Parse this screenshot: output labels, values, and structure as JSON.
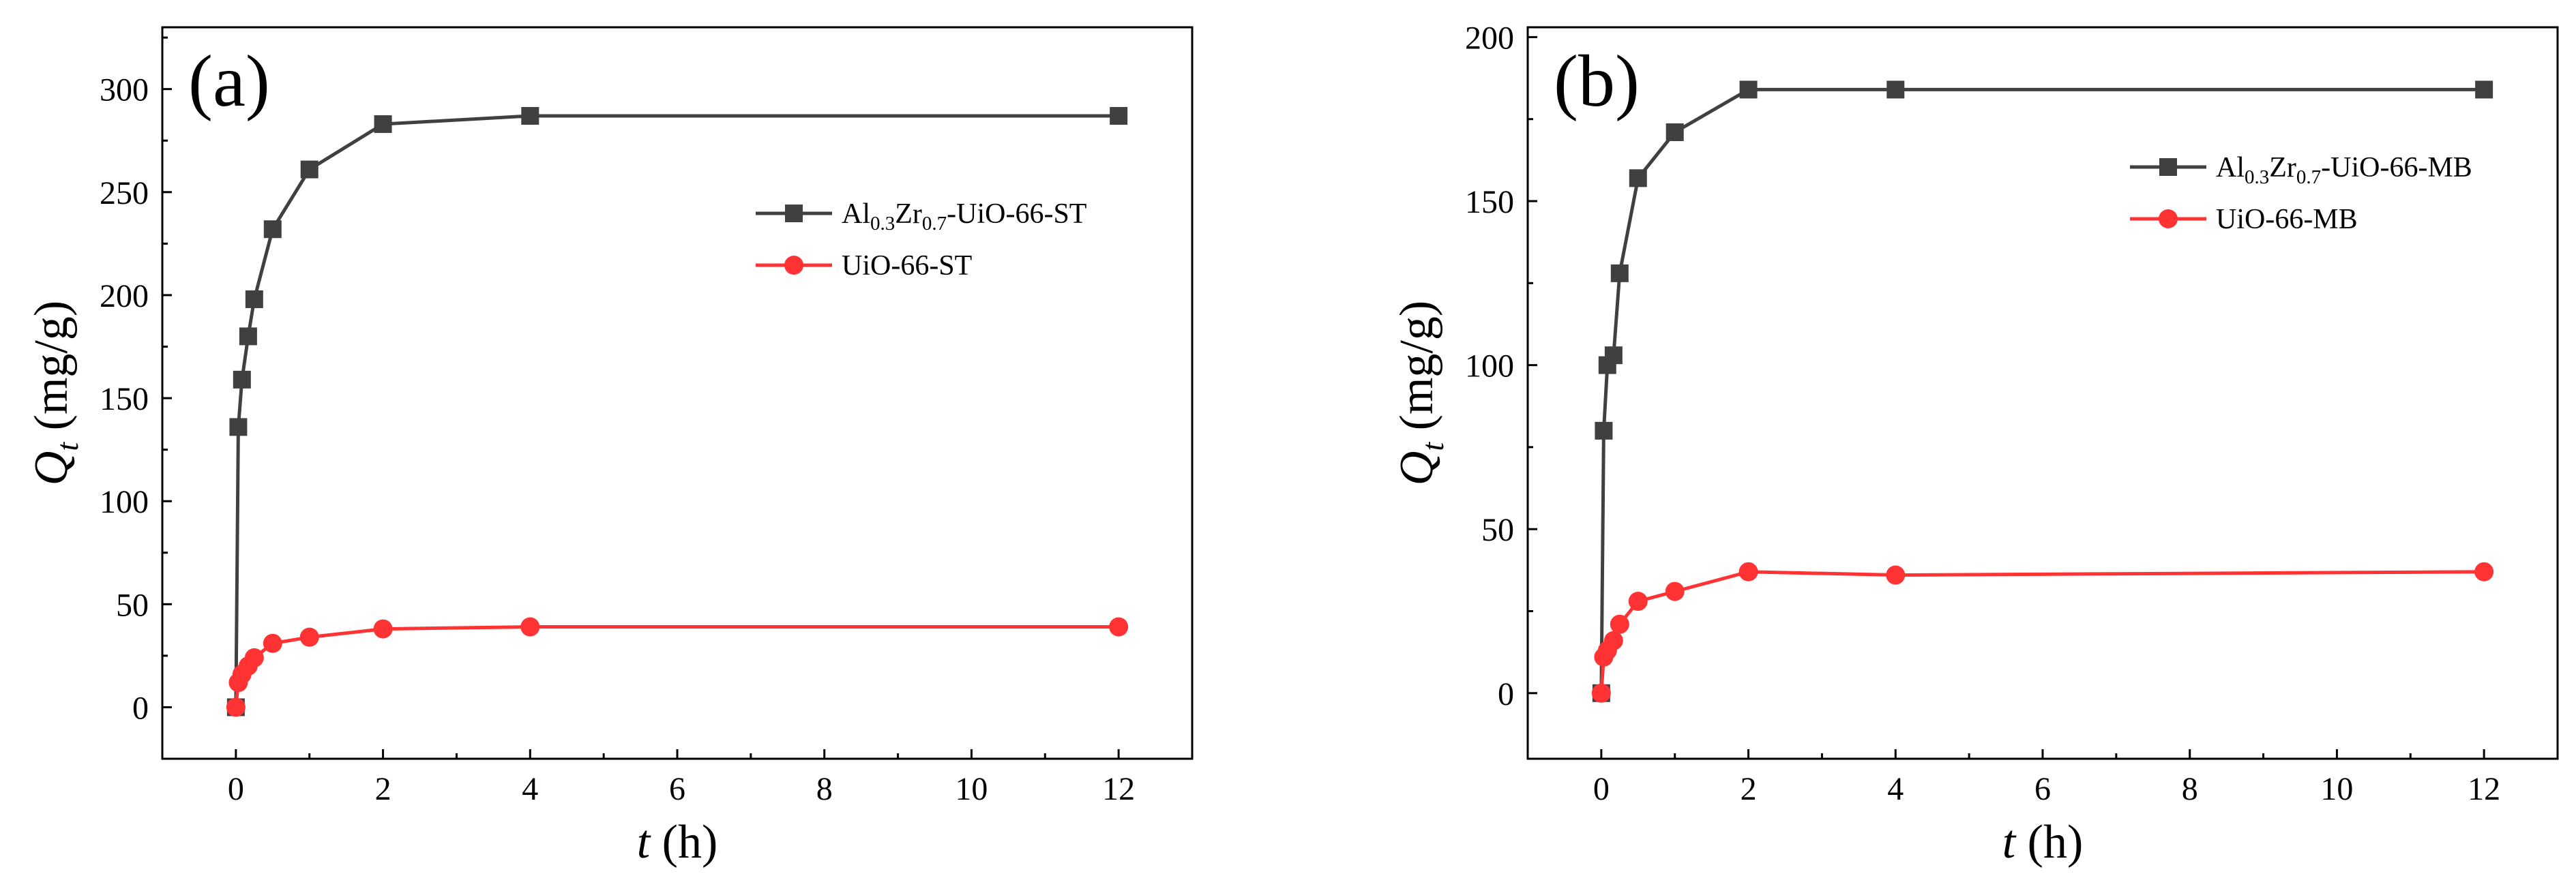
{
  "chart_data": [
    {
      "type": "line",
      "panel_label": "(a)",
      "xlabel": {
        "var": "t",
        "unit": " (h)"
      },
      "ylabel": {
        "var": "Q",
        "sub": "t",
        "unit": " (mg/g)"
      },
      "xlim": [
        -1,
        13
      ],
      "ylim": [
        -25,
        330
      ],
      "xticks": [
        0,
        2,
        4,
        6,
        8,
        10,
        12
      ],
      "yticks": [
        0,
        50,
        100,
        150,
        200,
        250,
        300
      ],
      "legend_position": "upper-right",
      "series": [
        {
          "name": "Al0.3Zr0.7-UiO-66-ST",
          "name_parts": [
            [
              "Al",
              ""
            ],
            [
              "0.3",
              "sub"
            ],
            [
              "Zr",
              ""
            ],
            [
              "0.7",
              "sub"
            ],
            [
              "-UiO-66-ST",
              ""
            ]
          ],
          "marker": "square",
          "color": "#404040",
          "x": [
            0,
            0.033,
            0.083,
            0.167,
            0.25,
            0.5,
            1,
            2,
            4,
            12
          ],
          "y": [
            0,
            136,
            159,
            180,
            198,
            232,
            261,
            283,
            287,
            287
          ]
        },
        {
          "name": "UiO-66-ST",
          "name_parts": [
            [
              "UiO-66-ST",
              ""
            ]
          ],
          "marker": "circle",
          "color": "#ff3333",
          "x": [
            0,
            0.033,
            0.083,
            0.167,
            0.25,
            0.5,
            1,
            2,
            4,
            12
          ],
          "y": [
            0,
            12,
            16,
            20,
            24,
            31,
            34,
            38,
            39,
            39
          ]
        }
      ]
    },
    {
      "type": "line",
      "panel_label": "(b)",
      "xlabel": {
        "var": "t",
        "unit": " (h)"
      },
      "ylabel": {
        "var": "Q",
        "sub": "t",
        "unit": " (mg/g)"
      },
      "xlim": [
        -1,
        13
      ],
      "ylim": [
        -20,
        203
      ],
      "xticks": [
        0,
        2,
        4,
        6,
        8,
        10,
        12
      ],
      "yticks": [
        0,
        50,
        100,
        150,
        200
      ],
      "legend_position": "upper-right",
      "series": [
        {
          "name": "Al0.3Zr0.7-UiO-66-MB",
          "name_parts": [
            [
              "Al",
              ""
            ],
            [
              "0.3",
              "sub"
            ],
            [
              "Zr",
              ""
            ],
            [
              "0.7",
              "sub"
            ],
            [
              "-UiO-66-MB",
              ""
            ]
          ],
          "marker": "square",
          "color": "#404040",
          "x": [
            0,
            0.033,
            0.083,
            0.167,
            0.25,
            0.5,
            1,
            2,
            4,
            12
          ],
          "y": [
            0,
            80,
            100,
            103,
            128,
            157,
            171,
            184,
            184,
            184
          ]
        },
        {
          "name": "UiO-66-MB",
          "name_parts": [
            [
              "UiO-66-MB",
              ""
            ]
          ],
          "marker": "circle",
          "color": "#ff3333",
          "x": [
            0,
            0.033,
            0.083,
            0.167,
            0.25,
            0.5,
            1,
            2,
            4,
            12
          ],
          "y": [
            0,
            11,
            13,
            16,
            21,
            28,
            31,
            37,
            36,
            37
          ]
        }
      ]
    }
  ]
}
